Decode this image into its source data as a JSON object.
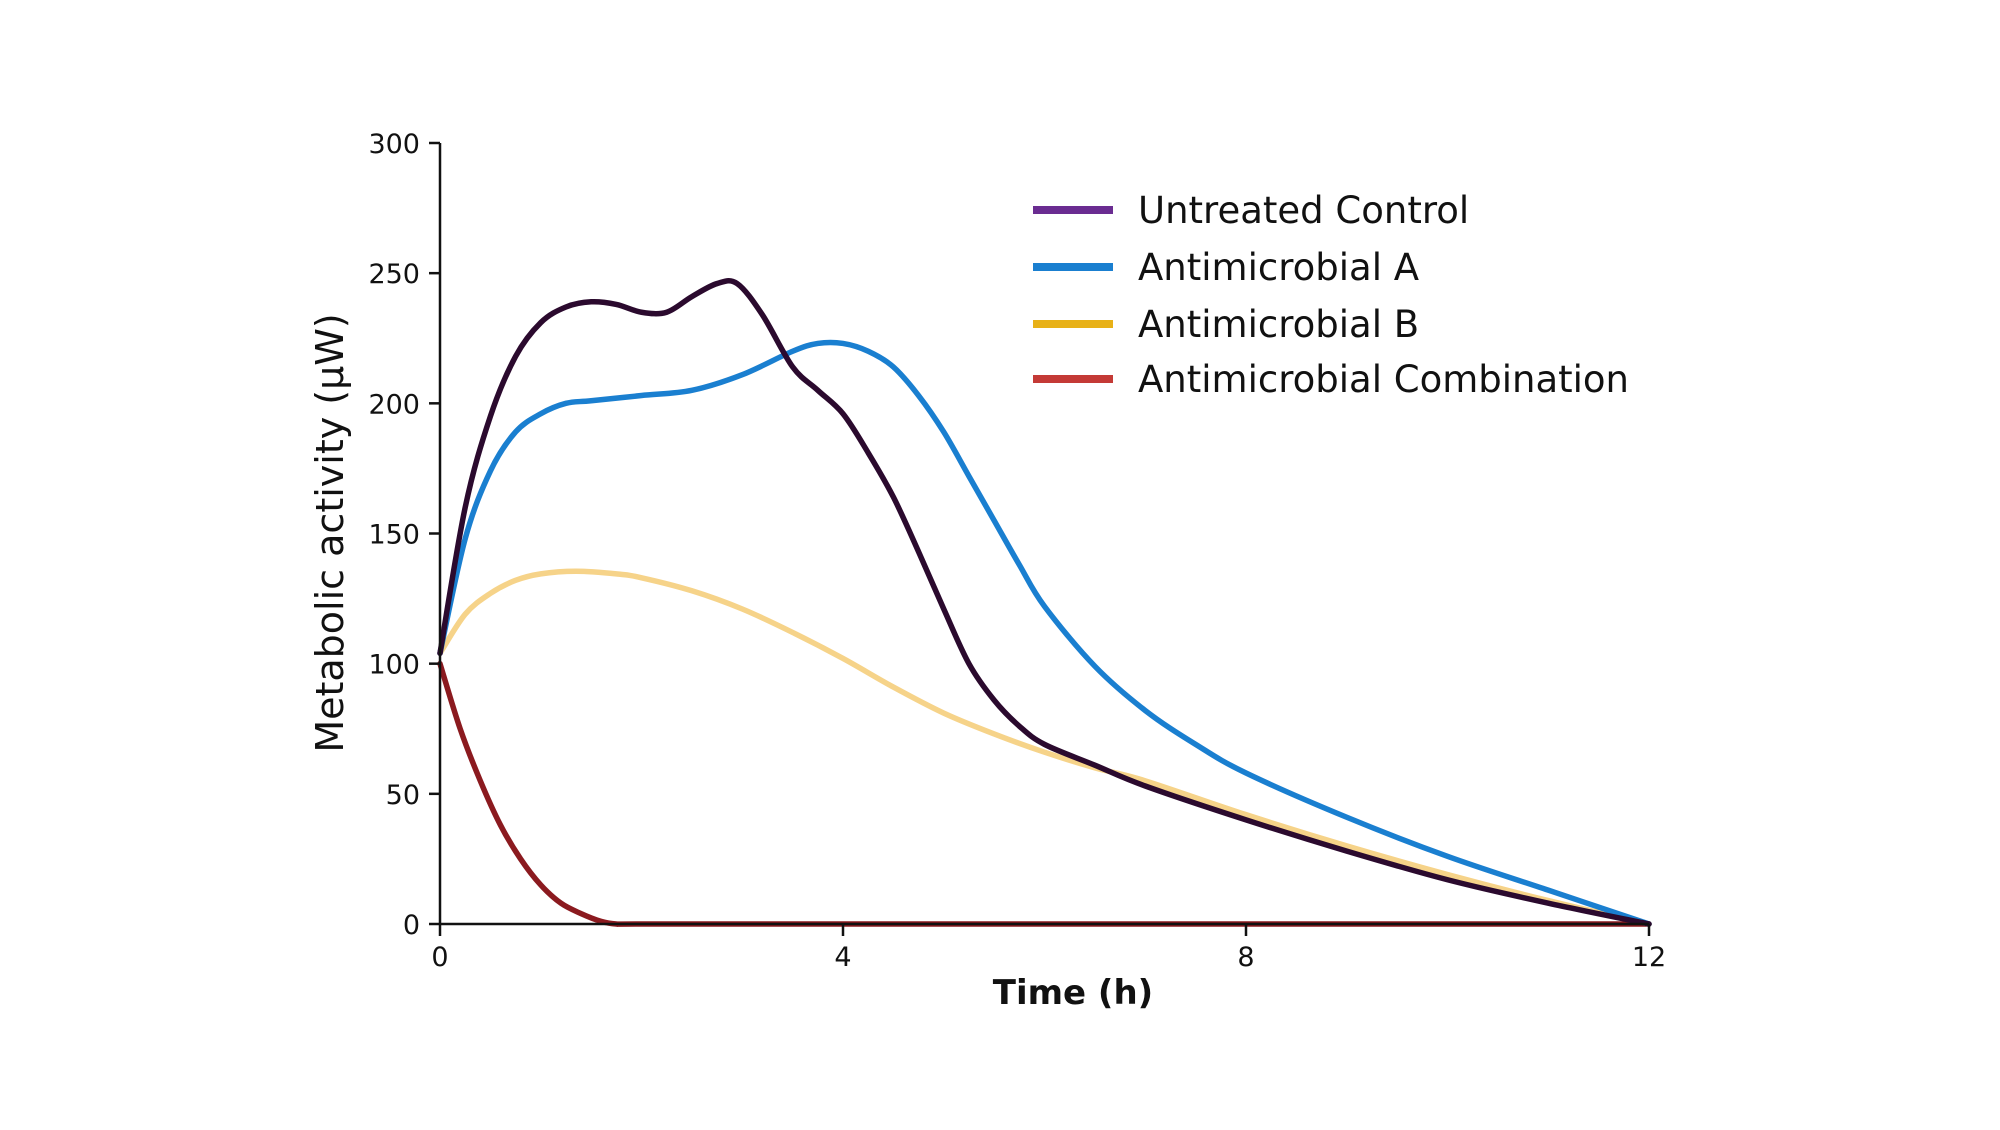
{
  "chart_data": {
    "type": "line",
    "title": "",
    "xlabel": "Time (h)",
    "ylabel": "Metabolic activity (μW)",
    "xlim": [
      0,
      12
    ],
    "ylim": [
      0,
      300
    ],
    "xticks": [
      0,
      4,
      8,
      12
    ],
    "xtick_labels": [
      "0",
      "4",
      "8",
      "12"
    ],
    "yticks": [
      0,
      50,
      100,
      150,
      200,
      250,
      300
    ],
    "ytick_labels": [
      "0",
      "50",
      "100",
      "150",
      "200",
      "250",
      "300"
    ],
    "grid": false,
    "legend_position": "top-right",
    "series": [
      {
        "name": "Untreated Control",
        "legend_color": "#6a2c91",
        "line_color": "#2b0a2e",
        "x": [
          0,
          0.25,
          0.5,
          0.75,
          1.0,
          1.25,
          1.5,
          1.75,
          2.0,
          2.25,
          2.5,
          2.75,
          2.95,
          3.2,
          3.5,
          3.75,
          4.0,
          4.25,
          4.5,
          4.75,
          5.0,
          5.25,
          5.5,
          5.75,
          6.0,
          6.5,
          7.0,
          8.0,
          9.0,
          10.0,
          11.0,
          12.0
        ],
        "y": [
          104,
          160,
          195,
          218,
          231,
          237,
          239,
          238,
          235,
          235,
          241,
          246,
          246,
          234,
          214,
          205,
          196,
          181,
          164,
          143,
          121,
          100,
          86,
          76,
          69,
          61,
          53,
          40,
          28,
          17,
          8,
          0
        ]
      },
      {
        "name": "Antimicrobial A",
        "legend_color": "#1a7fd0",
        "line_color": "#1a7fd0",
        "x": [
          0,
          0.25,
          0.5,
          0.75,
          1.0,
          1.25,
          1.5,
          2.0,
          2.5,
          3.0,
          3.5,
          3.75,
          4.0,
          4.25,
          4.5,
          4.75,
          5.0,
          5.25,
          5.5,
          5.75,
          6.0,
          6.5,
          7.0,
          7.5,
          8.0,
          9.0,
          10.0,
          11.0,
          12.0
        ],
        "y": [
          104,
          148,
          174,
          189,
          196,
          200,
          201,
          203,
          205,
          211,
          220,
          223,
          223,
          220,
          214,
          203,
          189,
          172,
          155,
          138,
          122,
          99,
          82,
          69,
          58,
          41,
          26,
          13,
          0
        ]
      },
      {
        "name": "Antimicrobial B",
        "legend_color": "#e8b117",
        "line_color": "#f6d389",
        "x": [
          0,
          0.25,
          0.5,
          0.75,
          1.0,
          1.35,
          1.75,
          2.0,
          2.5,
          3.0,
          3.5,
          4.0,
          4.5,
          5.0,
          5.5,
          6.0,
          6.5,
          7.0,
          8.0,
          9.0,
          10.0,
          11.0,
          12.0
        ],
        "y": [
          104,
          119,
          127,
          132,
          134.5,
          135.5,
          134.5,
          133,
          128,
          121,
          112,
          102,
          91,
          81,
          73,
          66,
          60,
          55,
          42,
          30,
          19,
          9,
          0
        ]
      },
      {
        "name": "Antimicrobial Combination",
        "legend_color": "#c43a36",
        "line_color": "#8b1a1f",
        "x": [
          0,
          0.2,
          0.4,
          0.6,
          0.8,
          1.0,
          1.2,
          1.4,
          1.6,
          1.75,
          2.0,
          4.0,
          8.0,
          12.0
        ],
        "y": [
          100,
          75,
          55,
          38,
          25,
          15,
          8,
          4,
          1,
          0,
          0,
          0,
          0,
          0
        ]
      }
    ]
  }
}
